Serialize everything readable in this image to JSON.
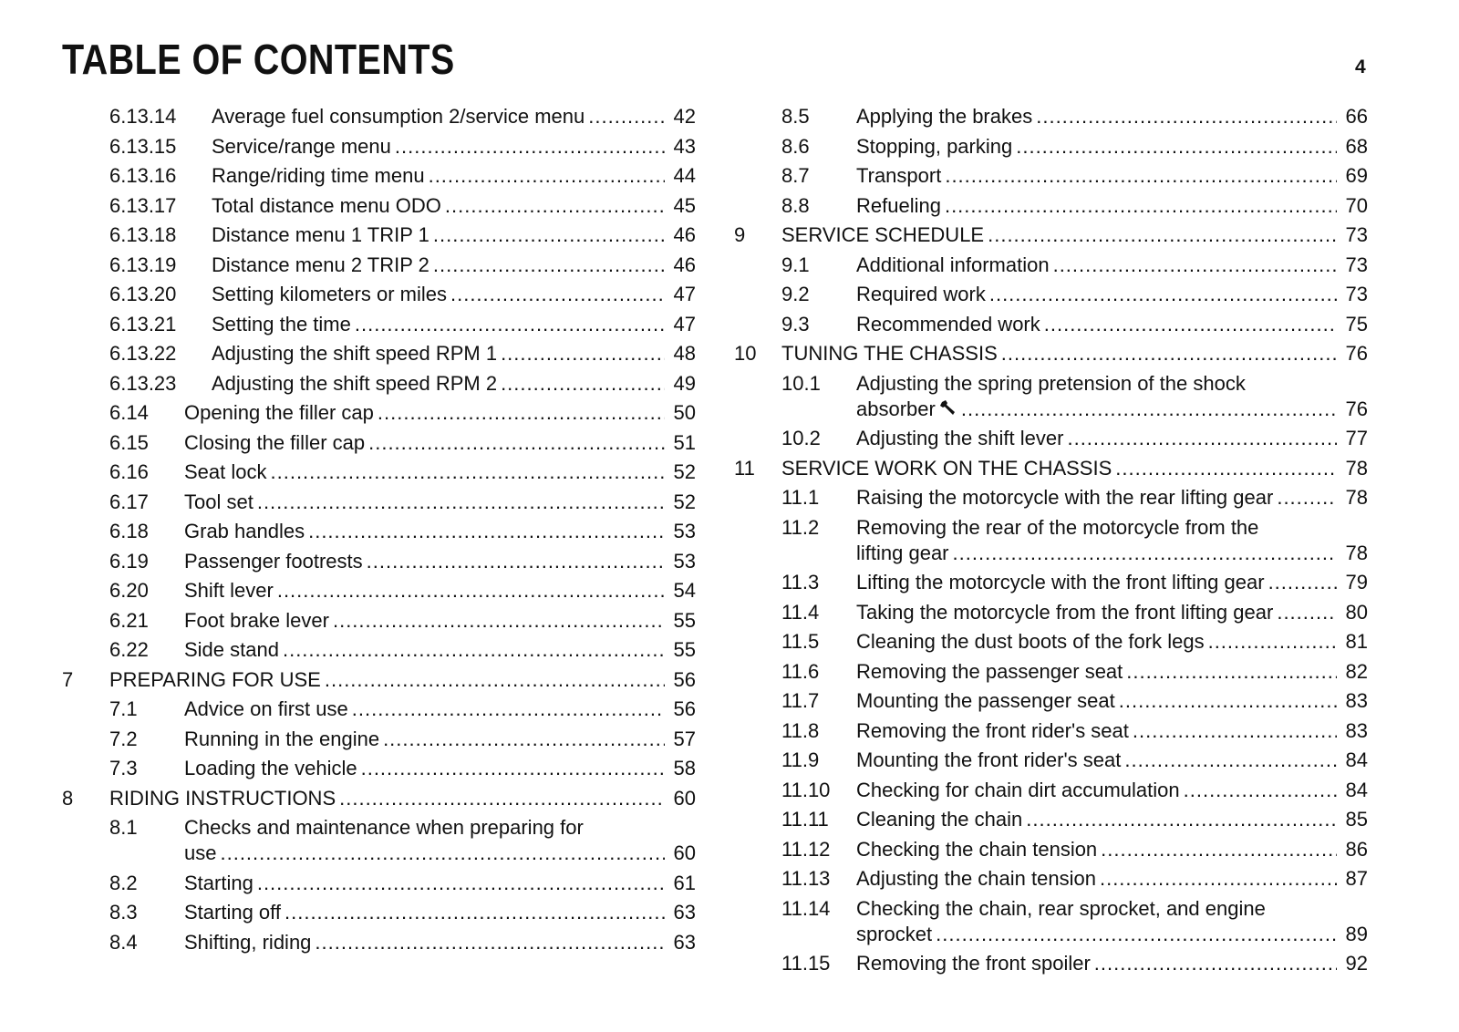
{
  "header": {
    "title": "TABLE OF CONTENTS",
    "page_number": "4"
  },
  "left": [
    {
      "level": "sub2",
      "num": "6.13.14",
      "title": [
        "Average fuel consumption 2/service menu"
      ],
      "page": "42"
    },
    {
      "level": "sub2",
      "num": "6.13.15",
      "title": [
        "Service/range menu"
      ],
      "page": "43"
    },
    {
      "level": "sub2",
      "num": "6.13.16",
      "title": [
        "Range/riding time menu"
      ],
      "page": "44"
    },
    {
      "level": "sub2",
      "num": "6.13.17",
      "title": [
        "Total distance menu ODO"
      ],
      "page": "45"
    },
    {
      "level": "sub2",
      "num": "6.13.18",
      "title": [
        "Distance menu 1 TRIP 1"
      ],
      "page": "46"
    },
    {
      "level": "sub2",
      "num": "6.13.19",
      "title": [
        "Distance menu 2 TRIP 2"
      ],
      "page": "46"
    },
    {
      "level": "sub2",
      "num": "6.13.20",
      "title": [
        "Setting kilometers or miles"
      ],
      "page": "47"
    },
    {
      "level": "sub2",
      "num": "6.13.21",
      "title": [
        "Setting the time"
      ],
      "page": "47"
    },
    {
      "level": "sub2",
      "num": "6.13.22",
      "title": [
        "Adjusting the shift speed RPM 1"
      ],
      "page": "48"
    },
    {
      "level": "sub2",
      "num": "6.13.23",
      "title": [
        "Adjusting the shift speed RPM 2"
      ],
      "page": "49"
    },
    {
      "level": "sub",
      "num": "6.14",
      "title": [
        "Opening the filler cap"
      ],
      "page": "50"
    },
    {
      "level": "sub",
      "num": "6.15",
      "title": [
        "Closing the filler cap"
      ],
      "page": "51"
    },
    {
      "level": "sub",
      "num": "6.16",
      "title": [
        "Seat lock"
      ],
      "page": "52"
    },
    {
      "level": "sub",
      "num": "6.17",
      "title": [
        "Tool set"
      ],
      "page": "52"
    },
    {
      "level": "sub",
      "num": "6.18",
      "title": [
        "Grab handles"
      ],
      "page": "53"
    },
    {
      "level": "sub",
      "num": "6.19",
      "title": [
        "Passenger footrests"
      ],
      "page": "53"
    },
    {
      "level": "sub",
      "num": "6.20",
      "title": [
        "Shift lever"
      ],
      "page": "54"
    },
    {
      "level": "sub",
      "num": "6.21",
      "title": [
        "Foot brake lever"
      ],
      "page": "55"
    },
    {
      "level": "sub",
      "num": "6.22",
      "title": [
        "Side stand"
      ],
      "page": "55"
    },
    {
      "level": "chap",
      "num": "7",
      "title": [
        "PREPARING FOR USE"
      ],
      "page": "56"
    },
    {
      "level": "sub",
      "num": "7.1",
      "title": [
        "Advice on first use"
      ],
      "page": "56"
    },
    {
      "level": "sub",
      "num": "7.2",
      "title": [
        "Running in the engine"
      ],
      "page": "57"
    },
    {
      "level": "sub",
      "num": "7.3",
      "title": [
        "Loading the vehicle"
      ],
      "page": "58"
    },
    {
      "level": "chap",
      "num": "8",
      "title": [
        "RIDING INSTRUCTIONS"
      ],
      "page": "60"
    },
    {
      "level": "sub",
      "num": "8.1",
      "title": [
        "Checks and maintenance when preparing for",
        "use"
      ],
      "page": "60"
    },
    {
      "level": "sub",
      "num": "8.2",
      "title": [
        "Starting"
      ],
      "page": "61"
    },
    {
      "level": "sub",
      "num": "8.3",
      "title": [
        "Starting off"
      ],
      "page": "63"
    },
    {
      "level": "sub",
      "num": "8.4",
      "title": [
        "Shifting, riding"
      ],
      "page": "63"
    }
  ],
  "right": [
    {
      "level": "sub",
      "num": "8.5",
      "title": [
        "Applying the brakes"
      ],
      "page": "66"
    },
    {
      "level": "sub",
      "num": "8.6",
      "title": [
        "Stopping, parking"
      ],
      "page": "68"
    },
    {
      "level": "sub",
      "num": "8.7",
      "title": [
        "Transport"
      ],
      "page": "69"
    },
    {
      "level": "sub",
      "num": "8.8",
      "title": [
        "Refueling"
      ],
      "page": "70"
    },
    {
      "level": "chap",
      "num": "9",
      "title": [
        "SERVICE SCHEDULE"
      ],
      "page": "73"
    },
    {
      "level": "sub",
      "num": "9.1",
      "title": [
        "Additional information"
      ],
      "page": "73"
    },
    {
      "level": "sub",
      "num": "9.2",
      "title": [
        "Required work"
      ],
      "page": "73"
    },
    {
      "level": "sub",
      "num": "9.3",
      "title": [
        "Recommended work"
      ],
      "page": "75"
    },
    {
      "level": "chap",
      "num": "10",
      "title": [
        "TUNING THE CHASSIS"
      ],
      "page": "76"
    },
    {
      "level": "sub",
      "num": "10.1",
      "title": [
        "Adjusting the spring pretension of the shock",
        "absorber"
      ],
      "page": "76",
      "icon": "wrench-icon"
    },
    {
      "level": "sub",
      "num": "10.2",
      "title": [
        "Adjusting the shift lever"
      ],
      "page": "77"
    },
    {
      "level": "chap",
      "num": "11",
      "title": [
        "SERVICE WORK ON THE CHASSIS"
      ],
      "page": "78"
    },
    {
      "level": "sub",
      "num": "11.1",
      "title": [
        "Raising the motorcycle with the rear lifting gear"
      ],
      "page": "78"
    },
    {
      "level": "sub",
      "num": "11.2",
      "title": [
        "Removing the rear of the motorcycle from the",
        "lifting gear"
      ],
      "page": "78"
    },
    {
      "level": "sub",
      "num": "11.3",
      "title": [
        "Lifting the motorcycle with the front lifting gear"
      ],
      "page": "79"
    },
    {
      "level": "sub",
      "num": "11.4",
      "title": [
        "Taking the motorcycle from the front lifting gear"
      ],
      "page": "80"
    },
    {
      "level": "sub",
      "num": "11.5",
      "title": [
        "Cleaning the dust boots of the fork legs"
      ],
      "page": "81"
    },
    {
      "level": "sub",
      "num": "11.6",
      "title": [
        "Removing the passenger seat"
      ],
      "page": "82"
    },
    {
      "level": "sub",
      "num": "11.7",
      "title": [
        "Mounting the passenger seat"
      ],
      "page": "83"
    },
    {
      "level": "sub",
      "num": "11.8",
      "title": [
        "Removing the front rider's seat"
      ],
      "page": "83"
    },
    {
      "level": "sub",
      "num": "11.9",
      "title": [
        "Mounting the front rider's seat"
      ],
      "page": "84"
    },
    {
      "level": "sub",
      "num": "11.10",
      "title": [
        "Checking for chain dirt accumulation"
      ],
      "page": "84"
    },
    {
      "level": "sub",
      "num": "11.11",
      "title": [
        "Cleaning the chain"
      ],
      "page": "85"
    },
    {
      "level": "sub",
      "num": "11.12",
      "title": [
        "Checking the chain tension"
      ],
      "page": "86"
    },
    {
      "level": "sub",
      "num": "11.13",
      "title": [
        "Adjusting the chain tension"
      ],
      "page": "87"
    },
    {
      "level": "sub",
      "num": "11.14",
      "title": [
        "Checking the chain, rear sprocket, and engine",
        "sprocket"
      ],
      "page": "89"
    },
    {
      "level": "sub",
      "num": "11.15",
      "title": [
        "Removing the front spoiler"
      ],
      "page": "92"
    }
  ]
}
